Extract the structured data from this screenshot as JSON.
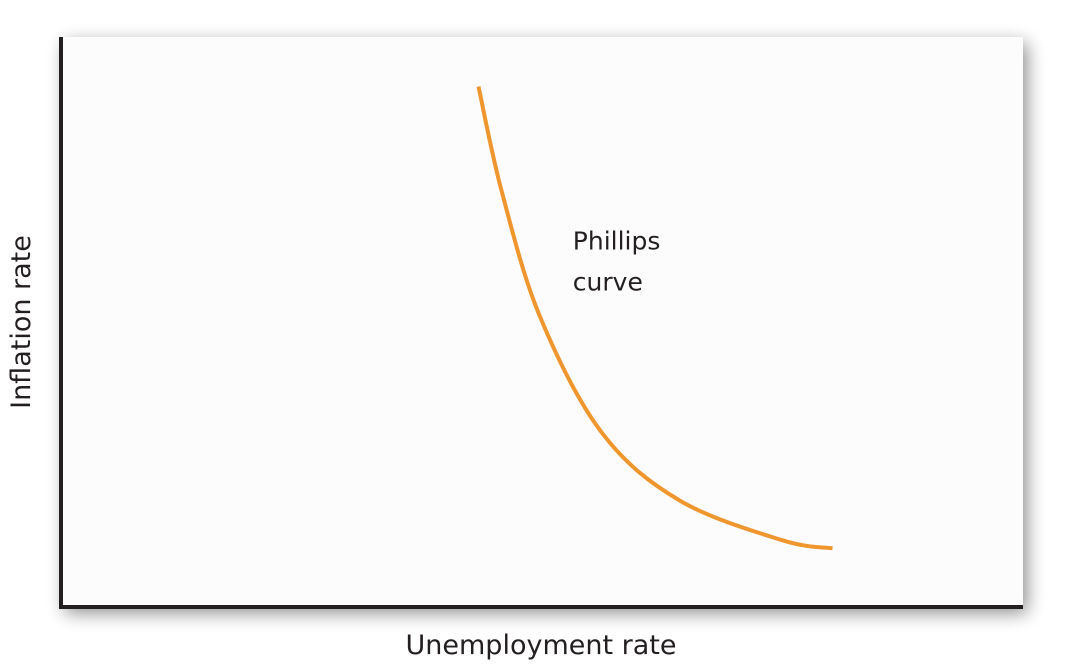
{
  "chart_data": {
    "type": "line",
    "title": "",
    "xlabel": "Unemployment rate",
    "ylabel": "Inflation rate",
    "xlim": [
      0,
      100
    ],
    "ylim": [
      0,
      100
    ],
    "grid": false,
    "legend": "none",
    "series": [
      {
        "x": [
          43.4,
          45.8,
          49.8,
          56.3,
          64.4,
          75.0,
          80.2
        ],
        "y": [
          91.3,
          73.0,
          50.9,
          30.4,
          18.6,
          11.7,
          10.3
        ],
        "color": "#f0962f"
      }
    ],
    "annotations": [
      {
        "line1": "Phillips",
        "line2": "curve",
        "x": 53.2,
        "y": 62.7
      }
    ]
  }
}
